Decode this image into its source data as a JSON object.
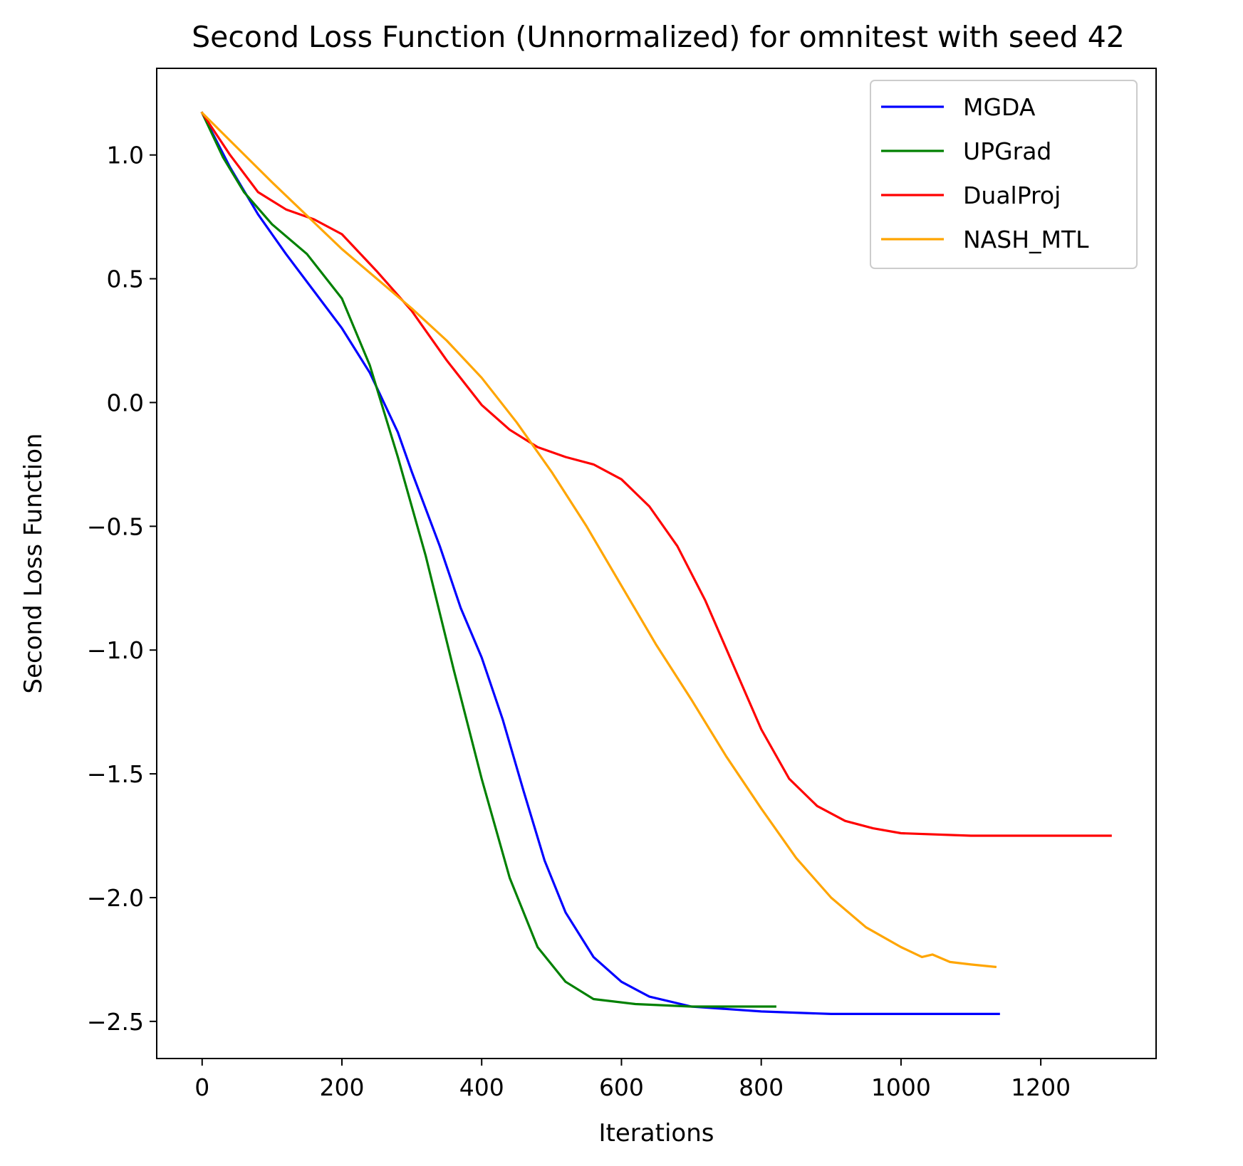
{
  "chart_data": {
    "type": "line",
    "title": "Second Loss Function (Unnormalized) for omnitest with seed 42",
    "xlabel": "Iterations",
    "ylabel": "Second Loss Function",
    "xlim": [
      -65,
      1365
    ],
    "ylim": [
      -2.65,
      1.35
    ],
    "xticks": [
      0,
      200,
      400,
      600,
      800,
      1000,
      1200
    ],
    "xtick_labels": [
      "0",
      "200",
      "400",
      "600",
      "800",
      "1000",
      "1200"
    ],
    "yticks": [
      1.0,
      0.5,
      0.0,
      -0.5,
      -1.0,
      -1.5,
      -2.0,
      -2.5
    ],
    "ytick_labels": [
      "1.0",
      "0.5",
      "0.0",
      "−0.5",
      "−1.0",
      "−1.5",
      "−2.0",
      "−2.5"
    ],
    "grid": false,
    "legend_position": "top-right",
    "series": [
      {
        "name": "MGDA",
        "color": "#0000ff",
        "points": [
          [
            0,
            1.17
          ],
          [
            40,
            0.95
          ],
          [
            80,
            0.76
          ],
          [
            120,
            0.6
          ],
          [
            160,
            0.45
          ],
          [
            200,
            0.3
          ],
          [
            240,
            0.12
          ],
          [
            280,
            -0.12
          ],
          [
            300,
            -0.28
          ],
          [
            340,
            -0.58
          ],
          [
            370,
            -0.83
          ],
          [
            400,
            -1.03
          ],
          [
            430,
            -1.28
          ],
          [
            460,
            -1.57
          ],
          [
            490,
            -1.85
          ],
          [
            520,
            -2.06
          ],
          [
            560,
            -2.24
          ],
          [
            600,
            -2.34
          ],
          [
            640,
            -2.4
          ],
          [
            700,
            -2.44
          ],
          [
            800,
            -2.46
          ],
          [
            900,
            -2.47
          ],
          [
            1000,
            -2.47
          ],
          [
            1140,
            -2.47
          ]
        ]
      },
      {
        "name": "UPGrad",
        "color": "#008000",
        "points": [
          [
            0,
            1.17
          ],
          [
            30,
            0.99
          ],
          [
            60,
            0.85
          ],
          [
            100,
            0.72
          ],
          [
            150,
            0.6
          ],
          [
            200,
            0.42
          ],
          [
            240,
            0.15
          ],
          [
            280,
            -0.22
          ],
          [
            320,
            -0.62
          ],
          [
            360,
            -1.08
          ],
          [
            400,
            -1.52
          ],
          [
            440,
            -1.92
          ],
          [
            480,
            -2.2
          ],
          [
            520,
            -2.34
          ],
          [
            560,
            -2.41
          ],
          [
            620,
            -2.43
          ],
          [
            700,
            -2.44
          ],
          [
            820,
            -2.44
          ]
        ]
      },
      {
        "name": "DualProj",
        "color": "#ff0000",
        "points": [
          [
            0,
            1.17
          ],
          [
            40,
            1.0
          ],
          [
            80,
            0.85
          ],
          [
            120,
            0.78
          ],
          [
            160,
            0.74
          ],
          [
            200,
            0.68
          ],
          [
            250,
            0.53
          ],
          [
            300,
            0.37
          ],
          [
            350,
            0.17
          ],
          [
            400,
            -0.01
          ],
          [
            440,
            -0.11
          ],
          [
            480,
            -0.18
          ],
          [
            520,
            -0.22
          ],
          [
            560,
            -0.25
          ],
          [
            600,
            -0.31
          ],
          [
            640,
            -0.42
          ],
          [
            680,
            -0.58
          ],
          [
            720,
            -0.8
          ],
          [
            760,
            -1.06
          ],
          [
            800,
            -1.32
          ],
          [
            840,
            -1.52
          ],
          [
            880,
            -1.63
          ],
          [
            920,
            -1.69
          ],
          [
            960,
            -1.72
          ],
          [
            1000,
            -1.74
          ],
          [
            1100,
            -1.75
          ],
          [
            1300,
            -1.75
          ]
        ]
      },
      {
        "name": "NASH_MTL",
        "color": "#ffa500",
        "points": [
          [
            0,
            1.17
          ],
          [
            100,
            0.89
          ],
          [
            200,
            0.62
          ],
          [
            300,
            0.38
          ],
          [
            350,
            0.25
          ],
          [
            400,
            0.1
          ],
          [
            450,
            -0.08
          ],
          [
            500,
            -0.28
          ],
          [
            550,
            -0.5
          ],
          [
            600,
            -0.74
          ],
          [
            650,
            -0.98
          ],
          [
            700,
            -1.2
          ],
          [
            750,
            -1.43
          ],
          [
            800,
            -1.64
          ],
          [
            850,
            -1.84
          ],
          [
            900,
            -2.0
          ],
          [
            950,
            -2.12
          ],
          [
            1000,
            -2.2
          ],
          [
            1030,
            -2.24
          ],
          [
            1045,
            -2.23
          ],
          [
            1070,
            -2.26
          ],
          [
            1100,
            -2.27
          ],
          [
            1135,
            -2.28
          ]
        ]
      }
    ]
  }
}
